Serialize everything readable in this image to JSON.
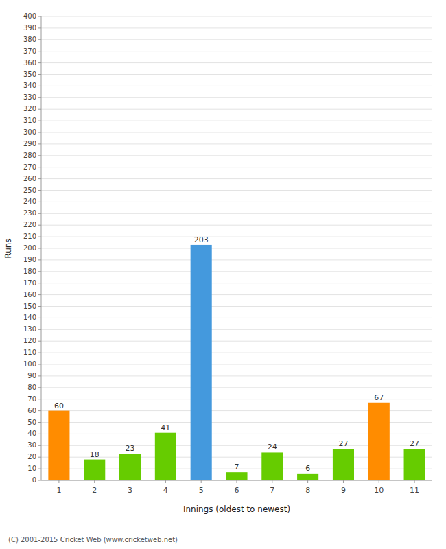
{
  "chart_data": {
    "type": "bar",
    "categories": [
      "1",
      "2",
      "3",
      "4",
      "5",
      "6",
      "7",
      "8",
      "9",
      "10",
      "11"
    ],
    "values": [
      60,
      18,
      23,
      41,
      203,
      7,
      24,
      6,
      27,
      67,
      27
    ],
    "colors": [
      "#ff8c00",
      "#66cc00",
      "#66cc00",
      "#66cc00",
      "#4499dd",
      "#66cc00",
      "#66cc00",
      "#66cc00",
      "#66cc00",
      "#ff8c00",
      "#66cc00"
    ],
    "xlabel": "Innings (oldest to newest)",
    "ylabel": "Runs",
    "ylim": [
      0,
      400
    ],
    "yticks": [
      0,
      10,
      20,
      30,
      40,
      50,
      60,
      70,
      80,
      90,
      100,
      110,
      120,
      130,
      140,
      150,
      160,
      170,
      180,
      190,
      200,
      210,
      220,
      230,
      240,
      250,
      260,
      270,
      280,
      290,
      300,
      310,
      320,
      330,
      340,
      350,
      360,
      370,
      380,
      390,
      400
    ],
    "grid": true,
    "data_labels": true,
    "annotations": [
      "(C) 2001-2015 Cricket Web (www.cricketweb.net)"
    ]
  }
}
